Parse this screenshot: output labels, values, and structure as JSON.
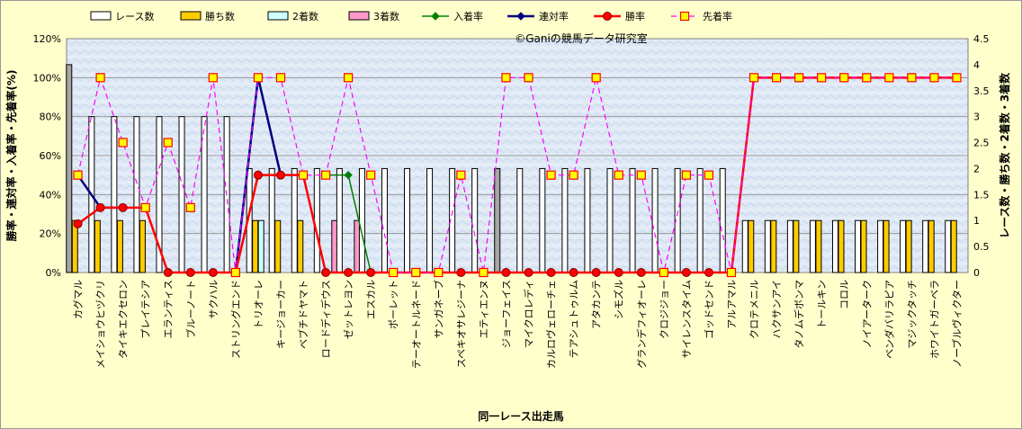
{
  "watermark": "©Ganiの競馬データ研究室",
  "chart_data": {
    "type": "bar",
    "xlabel": "同一レース出走馬",
    "ylabel_left": "勝率・連対率・入着率・先着率(%)",
    "ylabel_right": "レース数・勝ち数・2着数・3着数",
    "ylim_left": [
      0,
      120
    ],
    "ylim_right": [
      0,
      4.5
    ],
    "yticks_left": [
      "0%",
      "20%",
      "40%",
      "60%",
      "80%",
      "100%",
      "120%"
    ],
    "yticks_right": [
      "0",
      "0.5",
      "1",
      "1.5",
      "2",
      "2.5",
      "3",
      "3.5",
      "4",
      "4.5"
    ],
    "grid": true,
    "legend_position": "top",
    "colors": {
      "races": "#ffffff",
      "races_gray": "#a6a6a6",
      "wins": "#ffcc00",
      "second": "#ccffff",
      "third": "#ff99cc",
      "placed": "#008000",
      "rentai": "#000080",
      "win_rate": "#ff0000",
      "senchaku": "#ff00ff",
      "plot_bg": "#dfe9f5",
      "grid": "#9a9a9a",
      "page_bg": "#ffffcc"
    },
    "categories": [
      "カグマル",
      "メイショウヒヅクリ",
      "タイキエクセロン",
      "プレイテシア",
      "エランティス",
      "ブルーノート",
      "サクハル",
      "ストリングエンド",
      "トリオーレ",
      "キージョーカー",
      "ベブチドヤマト",
      "ロードディデウス",
      "ゼットレヨン",
      "エスカル",
      "ポーレット",
      "テーオートルネード",
      "サンガネーブ",
      "スペキオサレジーナ",
      "エティエンヌ",
      "ジョーフェイス",
      "マイクロレディ",
      "カルロヴェローチェ",
      "テアシュトゥルム",
      "アタカンテ",
      "シモズル",
      "グランデフィオーレ",
      "クロジジョー",
      "サイレンスタイム",
      "ゴッドセンド",
      "アルアマル",
      "クロテメニル",
      "ハクサンアイ",
      "タノムデボンマ",
      "トールキン",
      "コロル",
      "ノイアーターク",
      "ベンダバリラピア",
      "マジックタッチ",
      "ホワイトガーベラ",
      "ノーブルヴィクター"
    ],
    "series": [
      {
        "name": "レース数",
        "axis": "right",
        "kind": "bar",
        "values": [
          4,
          3,
          3,
          3,
          3,
          3,
          3,
          3,
          2,
          2,
          2,
          2,
          2,
          2,
          2,
          2,
          2,
          2,
          2,
          2,
          2,
          2,
          2,
          2,
          2,
          2,
          2,
          2,
          2,
          2,
          1,
          1,
          1,
          1,
          1,
          1,
          1,
          1,
          1,
          1
        ]
      },
      {
        "name": "勝ち数",
        "axis": "right",
        "kind": "bar",
        "values": [
          1,
          1,
          1,
          1,
          0,
          0,
          0,
          0,
          1,
          1,
          1,
          0,
          0,
          0,
          0,
          0,
          0,
          0,
          0,
          0,
          0,
          0,
          0,
          0,
          0,
          0,
          0,
          0,
          0,
          0,
          1,
          1,
          1,
          1,
          1,
          1,
          1,
          1,
          1,
          1
        ]
      },
      {
        "name": "2着数",
        "axis": "right",
        "kind": "bar",
        "values": [
          0,
          0,
          0,
          0,
          0,
          0,
          0,
          0,
          1,
          0,
          0,
          0,
          0,
          0,
          0,
          0,
          0,
          0,
          0,
          0,
          0,
          0,
          0,
          0,
          0,
          0,
          0,
          0,
          0,
          0,
          0,
          0,
          0,
          0,
          0,
          0,
          0,
          0,
          0,
          0
        ]
      },
      {
        "name": "3着数",
        "axis": "right",
        "kind": "bar",
        "values": [
          0,
          0,
          0,
          0,
          0,
          0,
          0,
          0,
          0,
          0,
          0,
          1,
          1,
          0,
          0,
          0,
          0,
          0,
          0,
          0,
          0,
          0,
          0,
          0,
          0,
          0,
          0,
          0,
          0,
          0,
          0,
          0,
          0,
          0,
          0,
          0,
          0,
          0,
          0,
          0
        ]
      },
      {
        "name": "入着率",
        "axis": "left",
        "kind": "line",
        "values": [
          null,
          null,
          null,
          null,
          null,
          null,
          null,
          null,
          null,
          null,
          null,
          50,
          50,
          0,
          null,
          null,
          null,
          null,
          null,
          null,
          null,
          null,
          null,
          null,
          null,
          null,
          null,
          null,
          null,
          null,
          null,
          null,
          null,
          null,
          null,
          null,
          null,
          null,
          null,
          null
        ]
      },
      {
        "name": "連対率",
        "axis": "left",
        "kind": "line",
        "values": [
          50,
          33.3,
          33.3,
          null,
          null,
          null,
          null,
          0,
          100,
          50,
          null,
          null,
          null,
          null,
          null,
          null,
          null,
          null,
          null,
          null,
          null,
          null,
          null,
          null,
          null,
          null,
          null,
          null,
          null,
          null,
          null,
          null,
          null,
          null,
          null,
          null,
          null,
          null,
          null,
          null
        ]
      },
      {
        "name": "勝率",
        "axis": "left",
        "kind": "line",
        "values": [
          25,
          33.3,
          33.3,
          33.3,
          0,
          0,
          0,
          0,
          50,
          50,
          50,
          0,
          0,
          0,
          0,
          0,
          0,
          0,
          0,
          0,
          0,
          0,
          0,
          0,
          0,
          0,
          0,
          0,
          0,
          0,
          100,
          100,
          100,
          100,
          100,
          100,
          100,
          100,
          100,
          100
        ]
      },
      {
        "name": "先着率",
        "axis": "left",
        "kind": "line",
        "values": [
          50,
          100,
          66.7,
          33.3,
          66.7,
          33.3,
          100,
          0,
          100,
          100,
          50,
          50,
          100,
          50,
          0,
          0,
          0,
          50,
          0,
          100,
          100,
          50,
          50,
          100,
          50,
          50,
          0,
          50,
          50,
          0,
          100,
          100,
          100,
          100,
          100,
          100,
          100,
          100,
          100,
          100
        ]
      }
    ],
    "gray_race_bars": [
      0,
      19
    ]
  }
}
